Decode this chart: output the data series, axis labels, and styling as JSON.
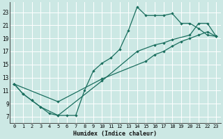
{
  "xlabel": "Humidex (Indice chaleur)",
  "bg_color": "#cce8e4",
  "grid_color": "#ffffff",
  "line_color": "#1a6e5e",
  "xlim": [
    -0.5,
    23.5
  ],
  "ylim": [
    6.0,
    24.5
  ],
  "xticks": [
    0,
    1,
    2,
    3,
    4,
    5,
    6,
    7,
    8,
    9,
    10,
    11,
    12,
    13,
    14,
    15,
    16,
    17,
    18,
    19,
    20,
    21,
    22,
    23
  ],
  "yticks": [
    7,
    9,
    11,
    13,
    15,
    17,
    19,
    21,
    23
  ],
  "line1_x": [
    0,
    1,
    2,
    3,
    4,
    5,
    6,
    7,
    8,
    9,
    10,
    11,
    12,
    13,
    14,
    15,
    16,
    17,
    18,
    19,
    20,
    21,
    22,
    23
  ],
  "line1_y": [
    12,
    10.5,
    9.5,
    8.5,
    7.5,
    7.2,
    7.2,
    7.2,
    11.0,
    14.0,
    15.2,
    16.0,
    17.3,
    20.2,
    23.8,
    22.5,
    22.5,
    22.5,
    22.8,
    21.3,
    21.3,
    20.5,
    19.5,
    19.3
  ],
  "line2_x": [
    0,
    1,
    2,
    3,
    5,
    10,
    14,
    16,
    17,
    18,
    20,
    21,
    22,
    23
  ],
  "line2_y": [
    12,
    10.5,
    9.5,
    8.5,
    7.2,
    12.5,
    17.0,
    18.0,
    18.3,
    18.8,
    19.5,
    21.3,
    21.3,
    19.3
  ],
  "line3_x": [
    0,
    5,
    10,
    15,
    16,
    17,
    18,
    19,
    20,
    21,
    22,
    23
  ],
  "line3_y": [
    12,
    9.3,
    12.8,
    15.5,
    16.5,
    17.0,
    17.8,
    18.5,
    19.0,
    19.5,
    20.0,
    19.3
  ]
}
